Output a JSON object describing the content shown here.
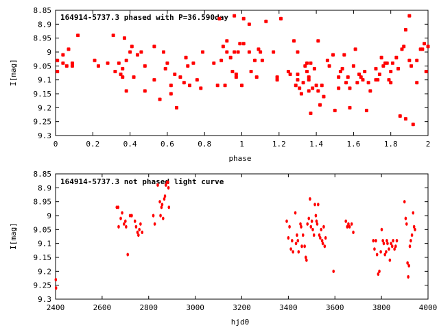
{
  "marker_color": "#ff0000",
  "chart_data": [
    {
      "type": "scatter",
      "title": "164914-5737.3 phased with P=36.590day",
      "xlabel": "phase",
      "ylabel": "I[mag]",
      "xlim": [
        0,
        2
      ],
      "ylim": [
        9.3,
        8.85
      ],
      "y_inverted": true,
      "grid": false,
      "xticks": [
        "0",
        "0.2",
        "0.4",
        "0.6",
        "0.8",
        "1",
        "1.2",
        "1.4",
        "1.6",
        "1.8",
        "2"
      ],
      "yticks": [
        "8.85",
        "8.9",
        "8.95",
        "9",
        "9.05",
        "9.1",
        "9.15",
        "9.2",
        "9.25",
        "9.3"
      ],
      "points": [
        [
          0.01,
          9.07
        ],
        [
          0.01,
          9.03
        ],
        [
          0.04,
          9.04
        ],
        [
          0.04,
          9.01
        ],
        [
          0.06,
          9.05
        ],
        [
          0.07,
          8.99
        ],
        [
          0.09,
          9.04
        ],
        [
          0.09,
          9.05
        ],
        [
          0.12,
          8.94
        ],
        [
          0.21,
          9.03
        ],
        [
          0.23,
          9.05
        ],
        [
          0.28,
          9.04
        ],
        [
          0.31,
          8.94
        ],
        [
          0.32,
          9.07
        ],
        [
          0.34,
          9.04
        ],
        [
          0.35,
          9.08
        ],
        [
          0.36,
          9.09
        ],
        [
          0.36,
          9.06
        ],
        [
          0.37,
          8.95
        ],
        [
          0.38,
          9.03
        ],
        [
          0.38,
          9.14
        ],
        [
          0.4,
          9.0
        ],
        [
          0.41,
          8.98
        ],
        [
          0.42,
          9.09
        ],
        [
          0.44,
          9.01
        ],
        [
          0.46,
          9.0
        ],
        [
          0.48,
          9.14
        ],
        [
          0.48,
          9.05
        ],
        [
          0.53,
          8.98
        ],
        [
          0.53,
          9.1
        ],
        [
          0.56,
          9.17
        ],
        [
          0.58,
          9.0
        ],
        [
          0.59,
          9.06
        ],
        [
          0.6,
          9.04
        ],
        [
          0.62,
          9.15
        ],
        [
          0.62,
          9.12
        ],
        [
          0.64,
          9.08
        ],
        [
          0.65,
          9.2
        ],
        [
          0.67,
          9.09
        ],
        [
          0.69,
          9.11
        ],
        [
          0.7,
          9.02
        ],
        [
          0.71,
          9.05
        ],
        [
          0.72,
          9.12
        ],
        [
          0.74,
          9.04
        ],
        [
          0.76,
          9.1
        ],
        [
          0.78,
          9.13
        ],
        [
          0.79,
          9.0
        ],
        [
          0.85,
          9.04
        ],
        [
          0.87,
          9.12
        ],
        [
          0.88,
          8.88
        ],
        [
          0.89,
          9.03
        ],
        [
          0.9,
          8.98
        ],
        [
          0.91,
          9.12
        ],
        [
          0.92,
          8.96
        ],
        [
          0.92,
          9.0
        ],
        [
          0.94,
          9.02
        ],
        [
          0.95,
          9.07
        ],
        [
          0.96,
          8.87
        ],
        [
          0.96,
          9.0
        ],
        [
          0.97,
          9.09
        ],
        [
          0.97,
          9.08
        ],
        [
          0.98,
          9.0
        ],
        [
          0.99,
          8.97
        ],
        [
          1.0,
          9.12
        ],
        [
          1.01,
          8.88
        ],
        [
          1.01,
          8.97
        ],
        [
          1.04,
          8.9
        ],
        [
          1.04,
          9.0
        ],
        [
          1.05,
          9.07
        ],
        [
          1.07,
          9.03
        ],
        [
          1.08,
          9.09
        ],
        [
          1.09,
          8.99
        ],
        [
          1.1,
          9.0
        ],
        [
          1.11,
          9.03
        ],
        [
          1.13,
          8.89
        ],
        [
          1.17,
          9.0
        ],
        [
          1.19,
          9.09
        ],
        [
          1.19,
          9.1
        ],
        [
          1.21,
          8.88
        ],
        [
          1.25,
          9.07
        ],
        [
          1.26,
          9.08
        ],
        [
          1.28,
          8.96
        ],
        [
          1.29,
          9.12
        ],
        [
          1.3,
          9.0
        ],
        [
          1.3,
          9.08
        ],
        [
          1.3,
          9.1
        ],
        [
          1.31,
          9.13
        ],
        [
          1.32,
          9.15
        ],
        [
          1.33,
          9.11
        ],
        [
          1.34,
          9.05
        ],
        [
          1.35,
          9.04
        ],
        [
          1.35,
          9.07
        ],
        [
          1.36,
          9.09
        ],
        [
          1.36,
          9.1
        ],
        [
          1.36,
          9.14
        ],
        [
          1.37,
          9.04
        ],
        [
          1.37,
          9.22
        ],
        [
          1.38,
          9.13
        ],
        [
          1.39,
          9.06
        ],
        [
          1.4,
          9.12
        ],
        [
          1.41,
          8.96
        ],
        [
          1.41,
          9.14
        ],
        [
          1.42,
          9.19
        ],
        [
          1.43,
          9.12
        ],
        [
          1.44,
          9.16
        ],
        [
          1.46,
          9.03
        ],
        [
          1.47,
          9.05
        ],
        [
          1.49,
          9.01
        ],
        [
          1.5,
          9.21
        ],
        [
          1.52,
          9.09
        ],
        [
          1.52,
          9.13
        ],
        [
          1.53,
          9.07
        ],
        [
          1.54,
          9.06
        ],
        [
          1.55,
          9.01
        ],
        [
          1.56,
          9.11
        ],
        [
          1.57,
          9.09
        ],
        [
          1.58,
          9.13
        ],
        [
          1.58,
          9.2
        ],
        [
          1.6,
          9.05
        ],
        [
          1.61,
          8.99
        ],
        [
          1.62,
          9.11
        ],
        [
          1.63,
          9.08
        ],
        [
          1.64,
          9.09
        ],
        [
          1.65,
          9.1
        ],
        [
          1.66,
          9.07
        ],
        [
          1.67,
          9.21
        ],
        [
          1.68,
          9.11
        ],
        [
          1.69,
          9.14
        ],
        [
          1.72,
          9.06
        ],
        [
          1.72,
          9.1
        ],
        [
          1.73,
          9.1
        ],
        [
          1.74,
          9.08
        ],
        [
          1.75,
          9.02
        ],
        [
          1.76,
          9.05
        ],
        [
          1.77,
          9.04
        ],
        [
          1.78,
          9.04
        ],
        [
          1.79,
          9.1
        ],
        [
          1.8,
          9.11
        ],
        [
          1.8,
          9.07
        ],
        [
          1.81,
          9.04
        ],
        [
          1.83,
          9.02
        ],
        [
          1.84,
          9.06
        ],
        [
          1.85,
          9.23
        ],
        [
          1.86,
          8.99
        ],
        [
          1.87,
          8.98
        ],
        [
          1.88,
          8.92
        ],
        [
          1.88,
          9.24
        ],
        [
          1.9,
          8.87
        ],
        [
          1.9,
          9.03
        ],
        [
          1.91,
          9.05
        ],
        [
          1.92,
          9.26
        ],
        [
          1.94,
          9.11
        ],
        [
          1.94,
          9.03
        ],
        [
          1.96,
          8.99
        ],
        [
          1.97,
          8.99
        ],
        [
          1.98,
          8.97
        ],
        [
          1.99,
          9.07
        ],
        [
          2.0,
          8.98
        ]
      ]
    },
    {
      "type": "scatter",
      "title": "164914-5737.3 not phased light curve",
      "xlabel": "hjd0",
      "ylabel": "I[mag]",
      "xlim": [
        2400,
        4000
      ],
      "ylim": [
        9.3,
        8.85
      ],
      "y_inverted": true,
      "grid": false,
      "xticks": [
        "2400",
        "2600",
        "2800",
        "3000",
        "3200",
        "3400",
        "3600",
        "3800",
        "4000"
      ],
      "yticks": [
        "8.85",
        "8.9",
        "8.95",
        "9",
        "9.05",
        "9.1",
        "9.15",
        "9.2",
        "9.25",
        "9.3"
      ],
      "points": [
        [
          2401,
          9.23
        ],
        [
          2402,
          9.26
        ],
        [
          2663,
          8.97
        ],
        [
          2669,
          8.97
        ],
        [
          2671,
          9.04
        ],
        [
          2680,
          9.01
        ],
        [
          2686,
          8.99
        ],
        [
          2694,
          9.03
        ],
        [
          2700,
          9.02
        ],
        [
          2703,
          9.04
        ],
        [
          2710,
          9.14
        ],
        [
          2720,
          9.0
        ],
        [
          2727,
          9.0
        ],
        [
          2741,
          9.02
        ],
        [
          2746,
          9.04
        ],
        [
          2752,
          9.06
        ],
        [
          2756,
          9.07
        ],
        [
          2760,
          9.05
        ],
        [
          2765,
          9.03
        ],
        [
          2772,
          9.06
        ],
        [
          2820,
          9.0
        ],
        [
          2826,
          9.03
        ],
        [
          2839,
          8.89
        ],
        [
          2848,
          8.95
        ],
        [
          2851,
          9.0
        ],
        [
          2855,
          8.97
        ],
        [
          2858,
          8.96
        ],
        [
          2862,
          9.01
        ],
        [
          2867,
          8.94
        ],
        [
          2870,
          8.93
        ],
        [
          2874,
          8.89
        ],
        [
          2879,
          8.88
        ],
        [
          2883,
          8.88
        ],
        [
          2885,
          8.9
        ],
        [
          2887,
          8.97
        ],
        [
          3393,
          9.02
        ],
        [
          3400,
          9.08
        ],
        [
          3405,
          9.04
        ],
        [
          3411,
          9.12
        ],
        [
          3416,
          9.09
        ],
        [
          3420,
          9.13
        ],
        [
          3430,
          8.99
        ],
        [
          3433,
          9.1
        ],
        [
          3437,
          9.07
        ],
        [
          3441,
          9.09
        ],
        [
          3444,
          9.13
        ],
        [
          3452,
          9.03
        ],
        [
          3455,
          9.04
        ],
        [
          3458,
          9.11
        ],
        [
          3463,
          9.07
        ],
        [
          3470,
          9.11
        ],
        [
          3475,
          9.15
        ],
        [
          3478,
          9.16
        ],
        [
          3482,
          9.03
        ],
        [
          3488,
          9.01
        ],
        [
          3493,
          8.94
        ],
        [
          3497,
          9.04
        ],
        [
          3501,
          9.02
        ],
        [
          3505,
          9.05
        ],
        [
          3510,
          9.07
        ],
        [
          3514,
          8.96
        ],
        [
          3518,
          9.0
        ],
        [
          3521,
          9.02
        ],
        [
          3524,
          9.03
        ],
        [
          3528,
          8.96
        ],
        [
          3533,
          9.07
        ],
        [
          3537,
          9.08
        ],
        [
          3541,
          9.05
        ],
        [
          3545,
          9.09
        ],
        [
          3548,
          9.1
        ],
        [
          3552,
          9.04
        ],
        [
          3556,
          9.11
        ],
        [
          3560,
          9.08
        ],
        [
          3594,
          9.2
        ],
        [
          3647,
          9.02
        ],
        [
          3653,
          9.04
        ],
        [
          3658,
          9.03
        ],
        [
          3663,
          9.04
        ],
        [
          3672,
          9.03
        ],
        [
          3679,
          9.06
        ],
        [
          3765,
          9.09
        ],
        [
          3770,
          9.12
        ],
        [
          3776,
          9.09
        ],
        [
          3781,
          9.14
        ],
        [
          3786,
          9.21
        ],
        [
          3791,
          9.2
        ],
        [
          3797,
          9.13
        ],
        [
          3801,
          9.05
        ],
        [
          3806,
          9.09
        ],
        [
          3810,
          9.1
        ],
        [
          3815,
          9.14
        ],
        [
          3820,
          9.13
        ],
        [
          3823,
          9.09
        ],
        [
          3826,
          9.1
        ],
        [
          3832,
          9.12
        ],
        [
          3836,
          9.16
        ],
        [
          3841,
          9.1
        ],
        [
          3846,
          9.11
        ],
        [
          3850,
          9.09
        ],
        [
          3856,
          9.12
        ],
        [
          3861,
          9.11
        ],
        [
          3866,
          9.09
        ],
        [
          3899,
          8.95
        ],
        [
          3904,
          9.01
        ],
        [
          3908,
          9.03
        ],
        [
          3912,
          9.17
        ],
        [
          3915,
          9.22
        ],
        [
          3918,
          9.18
        ],
        [
          3922,
          9.11
        ],
        [
          3926,
          9.09
        ],
        [
          3931,
          9.07
        ],
        [
          3936,
          8.99
        ],
        [
          3940,
          9.04
        ],
        [
          3944,
          9.05
        ]
      ]
    }
  ]
}
